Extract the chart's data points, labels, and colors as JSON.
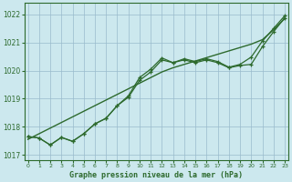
{
  "title": "Graphe pression niveau de la mer (hPa)",
  "bg_color": "#cce8ee",
  "grid_color": "#99bbcc",
  "line_color": "#2d6a2d",
  "x_ticks": [
    0,
    1,
    2,
    3,
    4,
    5,
    6,
    7,
    8,
    9,
    10,
    11,
    12,
    13,
    14,
    15,
    16,
    17,
    18,
    19,
    20,
    21,
    22,
    23
  ],
  "ylim": [
    1016.8,
    1022.4
  ],
  "yticks": [
    1017,
    1018,
    1019,
    1020,
    1021,
    1022
  ],
  "line_straight": [
    1017.55,
    1017.75,
    1017.95,
    1018.15,
    1018.35,
    1018.55,
    1018.75,
    1018.95,
    1019.15,
    1019.35,
    1019.55,
    1019.75,
    1019.95,
    1020.1,
    1020.22,
    1020.34,
    1020.46,
    1020.58,
    1020.7,
    1020.82,
    1020.94,
    1021.1,
    1021.45,
    1021.85
  ],
  "line_markers1": [
    1017.65,
    1017.6,
    1017.35,
    1017.62,
    1017.48,
    1017.75,
    1018.1,
    1018.3,
    1018.75,
    1019.1,
    1019.75,
    1020.05,
    1020.45,
    1020.28,
    1020.42,
    1020.32,
    1020.42,
    1020.32,
    1020.12,
    1020.22,
    1020.48,
    1021.05,
    1021.5,
    1021.95
  ],
  "line_markers2": [
    1017.65,
    1017.6,
    1017.35,
    1017.62,
    1017.48,
    1017.75,
    1018.1,
    1018.3,
    1018.75,
    1019.05,
    1019.65,
    1019.95,
    1020.38,
    1020.28,
    1020.38,
    1020.28,
    1020.38,
    1020.28,
    1020.1,
    1020.18,
    1020.22,
    1020.85,
    1021.38,
    1021.88
  ]
}
